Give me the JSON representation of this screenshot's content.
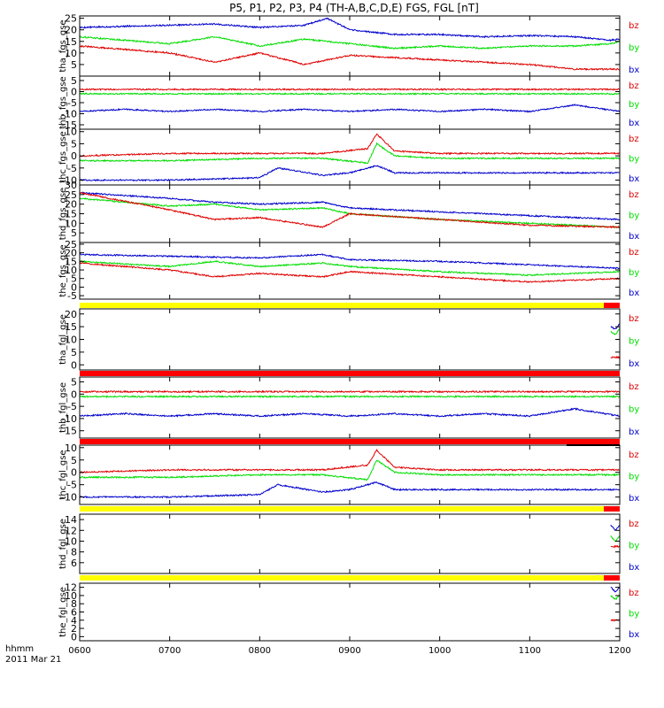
{
  "chart_data": {
    "type": "line",
    "title": "P5, P1, P2, P3, P4 (TH-A,B,C,D,E) FGS, FGL [nT]",
    "xlabel_line1": "hhmm",
    "xlabel_line2": "2011 Mar 21",
    "x_ticks": [
      "0600",
      "0700",
      "0800",
      "0900",
      "1000",
      "1100",
      "1200"
    ],
    "xlim": [
      600,
      1200
    ],
    "series_colors": {
      "bz": "#e00000",
      "by": "#00dd00",
      "bx": "#0000cc"
    },
    "panels": [
      {
        "ylabel": "tha_fgs_gse",
        "ylim": [
          0,
          26
        ],
        "yticks": [
          "5",
          "10",
          "15",
          "20",
          "25"
        ],
        "legend": [
          "bz",
          "by",
          "bx"
        ],
        "series": [
          {
            "name": "bx",
            "x": [
              600,
              700,
              750,
              800,
              850,
              875,
              900,
              950,
              1000,
              1050,
              1100,
              1150,
              1190,
              1200
            ],
            "values": [
              21,
              22,
              22.5,
              21,
              22,
              25,
              20,
              18,
              18,
              17,
              17.5,
              17,
              15.5,
              16
            ]
          },
          {
            "name": "by",
            "x": [
              600,
              700,
              750,
              800,
              850,
              900,
              950,
              1000,
              1050,
              1100,
              1150,
              1190,
              1200
            ],
            "values": [
              17,
              14,
              17,
              13,
              16,
              14,
              12,
              13,
              12,
              13,
              13,
              14,
              15
            ]
          },
          {
            "name": "bz",
            "x": [
              600,
              700,
              750,
              800,
              850,
              900,
              950,
              1000,
              1050,
              1100,
              1150,
              1190,
              1200
            ],
            "values": [
              13,
              10,
              6,
              10,
              5,
              9,
              8,
              7,
              6,
              5,
              3,
              3,
              3
            ]
          }
        ]
      },
      {
        "ylabel": "thb_fgs_gse",
        "ylim": [
          -17,
          7
        ],
        "yticks": [
          "5",
          "0",
          "-5",
          "-10",
          "-15"
        ],
        "legend": [
          "bz",
          "by",
          "bx"
        ],
        "series": [
          {
            "name": "bz",
            "x": [
              600,
              700,
              800,
              900,
              1000,
              1100,
              1200
            ],
            "values": [
              1,
              1,
              1,
              1,
              1,
              1,
              1
            ]
          },
          {
            "name": "by",
            "x": [
              600,
              700,
              800,
              900,
              1000,
              1100,
              1200
            ],
            "values": [
              -1,
              -1,
              -1,
              -1,
              -1,
              -1,
              -1
            ]
          },
          {
            "name": "bx",
            "x": [
              600,
              650,
              700,
              750,
              800,
              850,
              900,
              950,
              1000,
              1050,
              1100,
              1150,
              1200
            ],
            "values": [
              -9,
              -8,
              -9,
              -8,
              -9,
              -8,
              -9,
              -8,
              -9,
              -8,
              -9,
              -6,
              -9
            ]
          }
        ]
      },
      {
        "ylabel": "thc_fgs_gse",
        "ylim": [
          -12,
          11
        ],
        "yticks": [
          "10",
          "5",
          "0",
          "-5",
          "-10"
        ],
        "legend": [
          "bz",
          "by",
          "bx"
        ],
        "series": [
          {
            "name": "bz",
            "x": [
              600,
              700,
              800,
              870,
              920,
              930,
              950,
              1000,
              1100,
              1200
            ],
            "values": [
              0,
              1,
              1,
              1,
              3,
              9,
              2,
              1,
              1,
              1
            ]
          },
          {
            "name": "by",
            "x": [
              600,
              700,
              800,
              870,
              920,
              930,
              950,
              1000,
              1100,
              1200
            ],
            "values": [
              -2,
              -2,
              -1,
              -1,
              -3,
              5,
              0,
              -1,
              -1,
              -1
            ]
          },
          {
            "name": "bx",
            "x": [
              600,
              700,
              800,
              820,
              870,
              900,
              930,
              950,
              1000,
              1100,
              1200
            ],
            "values": [
              -10,
              -10,
              -9,
              -5,
              -8,
              -7,
              -4,
              -7,
              -7,
              -7,
              -7
            ]
          }
        ]
      },
      {
        "ylabel": "thd_fgs_gse",
        "ylim": [
          0,
          30
        ],
        "yticks": [
          "30",
          "25",
          "20",
          "15",
          "10",
          "5"
        ],
        "legend": [
          "bz",
          "by",
          "bx"
        ],
        "series": [
          {
            "name": "bx",
            "x": [
              600,
              700,
              750,
              800,
              870,
              900,
              1000,
              1100,
              1200
            ],
            "values": [
              26,
              23,
              21,
              20,
              21,
              18,
              16,
              14,
              12
            ]
          },
          {
            "name": "by",
            "x": [
              600,
              700,
              750,
              800,
              870,
              900,
              1000,
              1100,
              1200
            ],
            "values": [
              23,
              19,
              20,
              17,
              18,
              15,
              12,
              10,
              8
            ]
          },
          {
            "name": "bz",
            "x": [
              600,
              700,
              750,
              800,
              870,
              900,
              1000,
              1100,
              1200
            ],
            "values": [
              26,
              17,
              12,
              13,
              8,
              15,
              12,
              9,
              8
            ]
          }
        ]
      },
      {
        "ylabel": "the_fgs_gse",
        "ylim": [
          -7,
          26
        ],
        "yticks": [
          "25",
          "20",
          "15",
          "10",
          "5",
          "0",
          "-5"
        ],
        "legend": [
          "bz",
          "by",
          "bx"
        ],
        "series": [
          {
            "name": "bx",
            "x": [
              600,
              700,
              800,
              870,
              900,
              1000,
              1100,
              1200
            ],
            "values": [
              19,
              18,
              17,
              19,
              16,
              15,
              13,
              11
            ]
          },
          {
            "name": "by",
            "x": [
              600,
              700,
              750,
              800,
              870,
              900,
              1000,
              1100,
              1200
            ],
            "values": [
              15,
              12,
              15,
              12,
              14,
              12,
              9,
              7,
              9
            ]
          },
          {
            "name": "bz",
            "x": [
              600,
              700,
              750,
              800,
              870,
              900,
              1000,
              1100,
              1200
            ],
            "values": [
              14,
              10,
              6,
              8,
              6,
              9,
              6,
              3,
              5
            ]
          }
        ]
      },
      {
        "ylabel": "tha_fgl_gse",
        "ylim": [
          -2,
          22
        ],
        "yticks": [
          "20",
          "15",
          "10",
          "5",
          "0"
        ],
        "legend": [
          "bz",
          "by",
          "bx"
        ],
        "series": [
          {
            "name": "bx",
            "x": [
              1190,
              1195,
              1200
            ],
            "values": [
              15,
              14,
              16
            ]
          },
          {
            "name": "by",
            "x": [
              1190,
              1195,
              1200
            ],
            "values": [
              13,
              12,
              14
            ]
          },
          {
            "name": "bz",
            "x": [
              1190,
              1195,
              1200
            ],
            "values": [
              3,
              3,
              3
            ]
          }
        ]
      },
      {
        "ylabel": "thb_fgl_gse",
        "ylim": [
          -18,
          7
        ],
        "yticks": [
          "5",
          "0",
          "-5",
          "-10",
          "-15"
        ],
        "legend": [
          "bz",
          "by",
          "bx"
        ],
        "series": [
          {
            "name": "bz",
            "x": [
              600,
              700,
              800,
              900,
              1000,
              1100,
              1200
            ],
            "values": [
              1,
              1,
              1,
              1,
              1,
              1,
              1
            ]
          },
          {
            "name": "by",
            "x": [
              600,
              700,
              800,
              900,
              1000,
              1100,
              1200
            ],
            "values": [
              -1,
              -1,
              -1,
              -1,
              -1,
              -1,
              -1
            ]
          },
          {
            "name": "bx",
            "x": [
              600,
              650,
              700,
              750,
              800,
              850,
              900,
              950,
              1000,
              1050,
              1100,
              1150,
              1200
            ],
            "values": [
              -9,
              -8,
              -9,
              -8,
              -9,
              -8,
              -9,
              -8,
              -9,
              -8,
              -9,
              -6,
              -9
            ]
          }
        ]
      },
      {
        "ylabel": "thc_fgl_gse",
        "ylim": [
          -13,
          11
        ],
        "yticks": [
          "10",
          "5",
          "0",
          "-5",
          "-10"
        ],
        "legend": [
          "bz",
          "by",
          "bx"
        ],
        "series": [
          {
            "name": "bz",
            "x": [
              600,
              700,
              800,
              870,
              920,
              930,
              950,
              1000,
              1100,
              1200
            ],
            "values": [
              0,
              1,
              1,
              1,
              3,
              9,
              2,
              1,
              1,
              1
            ]
          },
          {
            "name": "by",
            "x": [
              600,
              700,
              800,
              870,
              920,
              930,
              950,
              1000,
              1100,
              1200
            ],
            "values": [
              -2,
              -2,
              -1,
              -1,
              -3,
              5,
              0,
              -1,
              -1,
              -1
            ]
          },
          {
            "name": "bx",
            "x": [
              600,
              700,
              800,
              820,
              870,
              900,
              930,
              950,
              1000,
              1100,
              1200
            ],
            "values": [
              -10,
              -10,
              -9,
              -5,
              -8,
              -7,
              -4,
              -7,
              -7,
              -7,
              -7
            ]
          }
        ]
      },
      {
        "ylabel": "thd_fgl_gse",
        "ylim": [
          4,
          15
        ],
        "yticks": [
          "14",
          "12",
          "10",
          "8",
          "6"
        ],
        "legend": [
          "bz",
          "by",
          "bx"
        ],
        "series": [
          {
            "name": "bx",
            "x": [
              1190,
              1195,
              1200
            ],
            "values": [
              13,
              12,
              13
            ]
          },
          {
            "name": "by",
            "x": [
              1190,
              1195,
              1200
            ],
            "values": [
              11,
              10,
              11
            ]
          },
          {
            "name": "bz",
            "x": [
              1190,
              1195,
              1200
            ],
            "values": [
              9,
              9,
              9
            ]
          }
        ]
      },
      {
        "ylabel": "the_fgl_gse",
        "ylim": [
          -1,
          13
        ],
        "yticks": [
          "12",
          "10",
          "8",
          "6",
          "4",
          "2",
          "0"
        ],
        "legend": [
          "bz",
          "by",
          "bx"
        ],
        "series": [
          {
            "name": "bx",
            "x": [
              1190,
              1195,
              1200
            ],
            "values": [
              12,
              11,
              12
            ]
          },
          {
            "name": "by",
            "x": [
              1190,
              1195,
              1200
            ],
            "values": [
              10,
              9,
              10
            ]
          },
          {
            "name": "bz",
            "x": [
              1190,
              1195,
              1200
            ],
            "values": [
              4,
              4,
              4
            ]
          }
        ]
      }
    ]
  }
}
